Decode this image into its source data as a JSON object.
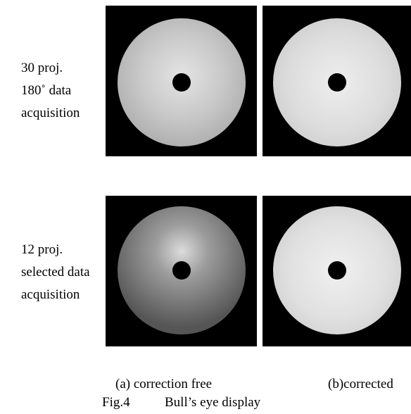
{
  "rows": [
    {
      "label": [
        "30 proj.",
        "180˚ data",
        "acquisition"
      ]
    },
    {
      "label": [
        "12 proj.",
        "selected data",
        "acquisition"
      ]
    }
  ],
  "columns": [
    "(a) correction free",
    "(b)corrected"
  ],
  "caption": {
    "number": "Fig.4",
    "text": "Bull’s eye display"
  }
}
